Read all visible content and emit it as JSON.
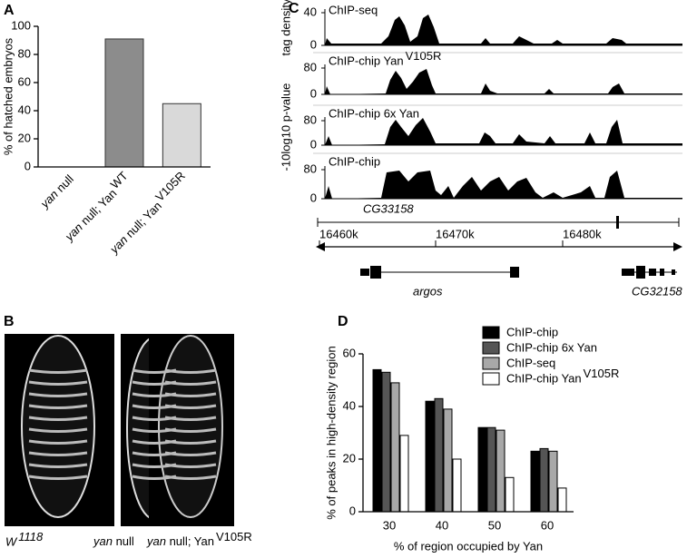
{
  "panel_labels": [
    "A",
    "B",
    "C",
    "D"
  ],
  "chart_data": [
    {
      "type": "bar",
      "ylabel": "% of hatched embryos",
      "categories": [
        "yan null",
        "yan null; Yan",
        "yan null; Yan"
      ],
      "category_superscripts": [
        null,
        "WT",
        "V105R"
      ],
      "values": [
        0,
        91,
        45
      ],
      "colors": [
        "#8c8c8c",
        "#8c8c8c",
        "#d9d9d9"
      ],
      "ylim": [
        0,
        100
      ],
      "yticks": [
        0,
        20,
        40,
        60,
        80,
        100
      ]
    },
    {
      "type": "grouped_bar",
      "ylabel": "% of peaks in high-density region",
      "xlabel": "% of region occupied by Yan",
      "categories": [
        "30",
        "40",
        "50",
        "60"
      ],
      "series": [
        {
          "name": "ChIP-chip",
          "color": "#000000",
          "values": [
            54,
            42,
            32,
            23
          ]
        },
        {
          "name": "ChIP-chip 6x Yan",
          "color": "#555555",
          "values": [
            53,
            43,
            32,
            24
          ]
        },
        {
          "name": "ChIP-seq",
          "color": "#a8a8a8",
          "values": [
            49,
            39,
            31,
            23
          ]
        },
        {
          "name": "ChIP-chip Yan",
          "name_superscript": "V105R",
          "color": "#ffffff",
          "values": [
            29,
            20,
            13,
            9
          ]
        }
      ],
      "ylim": [
        0,
        60
      ],
      "yticks": [
        0,
        20,
        40,
        60
      ]
    }
  ],
  "genome_browser": {
    "axis_labels": [
      "tag density",
      "-10log10 p-value"
    ],
    "tracks": [
      {
        "name": "ChIP-seq",
        "yticks": [
          0,
          40
        ]
      },
      {
        "name": "ChIP-chip Yan",
        "name_superscript": "V105R",
        "yticks": [
          0,
          80
        ]
      },
      {
        "name": "ChIP-chip 6x Yan",
        "yticks": [
          0,
          80
        ]
      },
      {
        "name": "ChIP-chip",
        "yticks": [
          0,
          80
        ]
      }
    ],
    "gene_top": "CG33158",
    "coordinates": [
      "16460k",
      "16470k",
      "16480k"
    ],
    "genes_bottom": [
      "argos",
      "CG32158"
    ]
  },
  "embryo_images": {
    "captions": [
      {
        "text": "W",
        "superscript": "1118"
      },
      {
        "text": "yan null"
      },
      {
        "text": "yan null; Yan",
        "superscript": "V105R"
      }
    ]
  }
}
